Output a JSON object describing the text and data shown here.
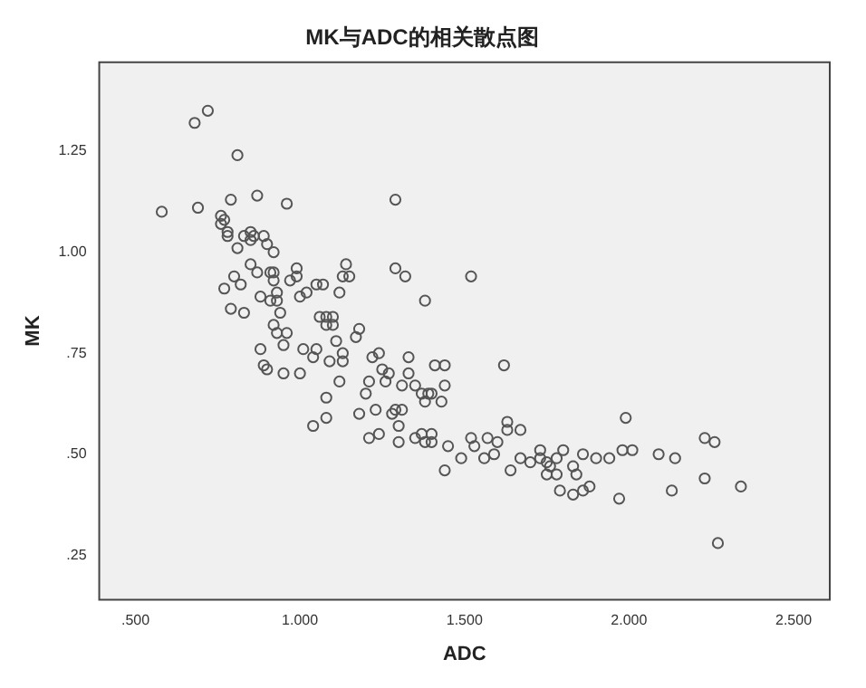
{
  "chart_data": {
    "type": "scatter",
    "title": "MK与ADC的相关散点图",
    "xlabel": "ADC",
    "ylabel": "MK",
    "marker": "circle",
    "grid": false,
    "legend": false,
    "xlim": [
      0.39,
      2.61
    ],
    "ylim": [
      0.14,
      1.47
    ],
    "xticks": [
      {
        "value": 0.5,
        "label": ".500"
      },
      {
        "value": 1.0,
        "label": "1.000"
      },
      {
        "value": 1.5,
        "label": "1.500"
      },
      {
        "value": 2.0,
        "label": "2.000"
      },
      {
        "value": 2.5,
        "label": "2.500"
      }
    ],
    "yticks": [
      {
        "value": 0.25,
        "label": ".25"
      },
      {
        "value": 0.5,
        "label": ".50"
      },
      {
        "value": 0.75,
        "label": ".75"
      },
      {
        "value": 1.0,
        "label": "1.00"
      },
      {
        "value": 1.25,
        "label": "1.25"
      }
    ],
    "series": [
      {
        "color": "#555555",
        "x": [
          0.58,
          0.68,
          0.72,
          0.69,
          0.81,
          0.79,
          0.87,
          0.96,
          1.29,
          0.76,
          0.77,
          0.76,
          0.78,
          0.78,
          0.83,
          0.85,
          0.86,
          0.85,
          0.89,
          0.81,
          0.9,
          0.92,
          0.85,
          0.87,
          0.8,
          0.82,
          0.77,
          0.91,
          0.92,
          0.92,
          0.93,
          0.93,
          0.91,
          0.88,
          0.79,
          0.83,
          0.94,
          0.97,
          0.99,
          0.99,
          1.0,
          1.02,
          1.05,
          1.07,
          1.06,
          1.08,
          1.1,
          1.08,
          1.1,
          1.12,
          1.14,
          1.13,
          1.15,
          0.92,
          0.93,
          0.96,
          0.95,
          0.88,
          0.89,
          0.9,
          0.95,
          1.01,
          1.05,
          1.04,
          1.09,
          1.11,
          1.13,
          1.13,
          1.17,
          1.18,
          1.12,
          1.0,
          1.08,
          1.08,
          1.04,
          1.2,
          1.21,
          1.22,
          1.24,
          1.25,
          1.26,
          1.27,
          1.33,
          1.33,
          1.31,
          1.18,
          1.23,
          1.28,
          1.29,
          1.31,
          1.3,
          1.21,
          1.24,
          1.3,
          1.29,
          1.32,
          1.38,
          1.35,
          1.37,
          1.39,
          1.4,
          1.38,
          1.43,
          1.41,
          1.44,
          1.44,
          1.35,
          1.37,
          1.4,
          1.38,
          1.4,
          1.45,
          1.44,
          1.52,
          1.49,
          1.52,
          1.53,
          1.56,
          1.57,
          1.59,
          1.6,
          1.62,
          1.63,
          1.63,
          1.64,
          1.67,
          1.67,
          1.7,
          1.73,
          1.73,
          1.75,
          1.76,
          1.78,
          1.75,
          1.78,
          1.8,
          1.83,
          1.84,
          1.86,
          1.79,
          1.83,
          1.86,
          1.88,
          1.9,
          1.94,
          1.98,
          1.99,
          2.01,
          1.97,
          2.09,
          2.14,
          2.13,
          2.23,
          2.26,
          2.23,
          2.34,
          2.27
        ],
        "values": [
          1.1,
          1.32,
          1.35,
          1.11,
          1.24,
          1.13,
          1.14,
          1.12,
          1.13,
          1.09,
          1.08,
          1.07,
          1.05,
          1.04,
          1.04,
          1.05,
          1.04,
          1.03,
          1.04,
          1.01,
          1.02,
          1.0,
          0.97,
          0.95,
          0.94,
          0.92,
          0.91,
          0.95,
          0.95,
          0.93,
          0.9,
          0.88,
          0.88,
          0.89,
          0.86,
          0.85,
          0.85,
          0.93,
          0.96,
          0.94,
          0.89,
          0.9,
          0.92,
          0.92,
          0.84,
          0.84,
          0.84,
          0.82,
          0.82,
          0.9,
          0.97,
          0.94,
          0.94,
          0.82,
          0.8,
          0.8,
          0.77,
          0.76,
          0.72,
          0.71,
          0.7,
          0.76,
          0.76,
          0.74,
          0.73,
          0.78,
          0.75,
          0.73,
          0.79,
          0.81,
          0.68,
          0.7,
          0.64,
          0.59,
          0.57,
          0.65,
          0.68,
          0.74,
          0.75,
          0.71,
          0.68,
          0.7,
          0.74,
          0.7,
          0.67,
          0.6,
          0.61,
          0.6,
          0.61,
          0.61,
          0.57,
          0.54,
          0.55,
          0.53,
          0.96,
          0.94,
          0.88,
          0.67,
          0.65,
          0.65,
          0.65,
          0.63,
          0.63,
          0.72,
          0.72,
          0.67,
          0.54,
          0.55,
          0.55,
          0.53,
          0.53,
          0.52,
          0.46,
          0.94,
          0.49,
          0.54,
          0.52,
          0.49,
          0.54,
          0.5,
          0.53,
          0.72,
          0.58,
          0.56,
          0.46,
          0.56,
          0.49,
          0.48,
          0.51,
          0.49,
          0.48,
          0.47,
          0.49,
          0.45,
          0.45,
          0.51,
          0.47,
          0.45,
          0.5,
          0.41,
          0.4,
          0.41,
          0.42,
          0.49,
          0.49,
          0.51,
          0.59,
          0.51,
          0.39,
          0.5,
          0.49,
          0.41,
          0.54,
          0.53,
          0.44,
          0.42,
          0.28
        ]
      }
    ]
  }
}
